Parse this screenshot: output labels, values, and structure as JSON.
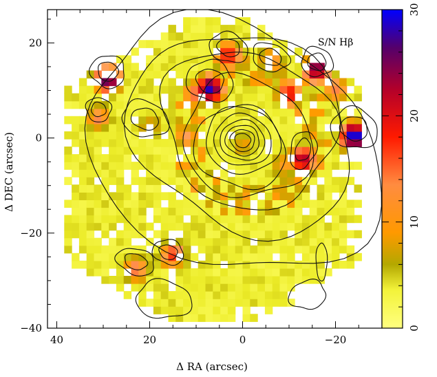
{
  "chart_data": {
    "type": "heatmap",
    "title": "",
    "annotation": "S/N Hβ",
    "xlabel": "Δ RA (arcsec)",
    "ylabel": "Δ DEC (arcsec)",
    "xlim": [
      42,
      -30
    ],
    "ylim": [
      -40,
      27
    ],
    "x_ticks": [
      40,
      20,
      0,
      -20
    ],
    "x_tick_labels": [
      "40",
      "20",
      "0",
      "−20"
    ],
    "y_ticks": [
      20,
      0,
      -20,
      -40
    ],
    "y_tick_labels": [
      "20",
      "0",
      "−20",
      "−40"
    ],
    "colorbar": {
      "range": [
        0,
        30
      ],
      "ticks": [
        0,
        10,
        20,
        30
      ],
      "tick_labels": [
        "0",
        "10",
        "20",
        "30"
      ],
      "colors": [
        "#ffff66",
        "#eeee33",
        "#c8b400",
        "#ff9900",
        "#ff2a00",
        "#990033",
        "#0000ff"
      ]
    },
    "field_of_view": "hexagonal",
    "bright_knots": [
      {
        "ra": 0,
        "dec": 0,
        "sn": 8
      },
      {
        "ra": 29,
        "dec": 14,
        "sn": 25
      },
      {
        "ra": 7,
        "dec": 12,
        "sn": 28
      },
      {
        "ra": -16,
        "dec": 16,
        "sn": 24
      },
      {
        "ra": -24,
        "dec": 2,
        "sn": 30
      },
      {
        "ra": -13,
        "dec": -3,
        "sn": 22
      },
      {
        "ra": 3,
        "dec": 19,
        "sn": 18
      },
      {
        "ra": 31,
        "dec": 6,
        "sn": 12
      },
      {
        "ra": 23,
        "dec": -26,
        "sn": 14
      },
      {
        "ra": 15,
        "dec": -23,
        "sn": 16
      },
      {
        "ra": 10,
        "dec": 11,
        "sn": 14
      },
      {
        "ra": -10,
        "dec": 11,
        "sn": 18
      },
      {
        "ra": -6,
        "dec": 18,
        "sn": 12
      },
      {
        "ra": 12,
        "dec": 2,
        "sn": 11
      },
      {
        "ra": -9,
        "dec": -4,
        "sn": 10
      },
      {
        "ra": 20,
        "dec": 4,
        "sn": 9
      },
      {
        "ra": -20,
        "dec": 12,
        "sn": 13
      }
    ],
    "grid": false
  }
}
